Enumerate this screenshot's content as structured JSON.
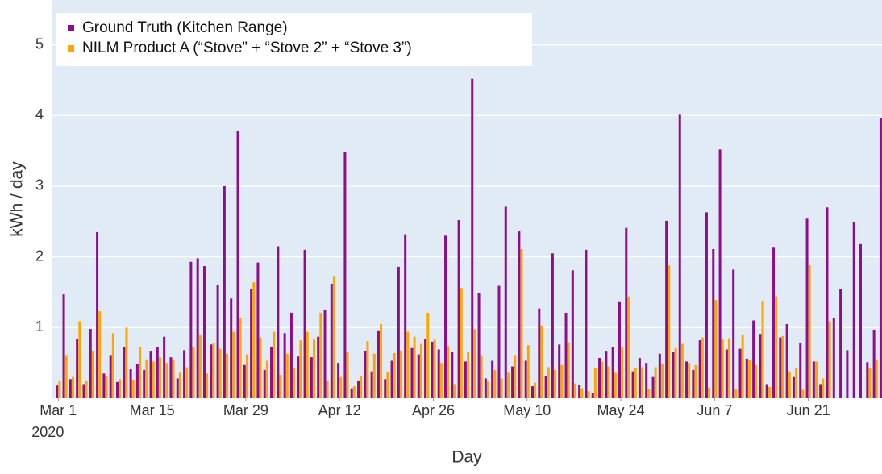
{
  "chart_data": {
    "type": "bar",
    "x": [
      "2020-03-01",
      "2020-03-02",
      "2020-03-03",
      "2020-03-04",
      "2020-03-05",
      "2020-03-06",
      "2020-03-07",
      "2020-03-08",
      "2020-03-09",
      "2020-03-10",
      "2020-03-11",
      "2020-03-12",
      "2020-03-13",
      "2020-03-14",
      "2020-03-15",
      "2020-03-16",
      "2020-03-17",
      "2020-03-18",
      "2020-03-19",
      "2020-03-20",
      "2020-03-21",
      "2020-03-22",
      "2020-03-23",
      "2020-03-24",
      "2020-03-25",
      "2020-03-26",
      "2020-03-27",
      "2020-03-28",
      "2020-03-29",
      "2020-03-30",
      "2020-03-31",
      "2020-04-01",
      "2020-04-02",
      "2020-04-03",
      "2020-04-04",
      "2020-04-05",
      "2020-04-06",
      "2020-04-07",
      "2020-04-08",
      "2020-04-09",
      "2020-04-10",
      "2020-04-11",
      "2020-04-12",
      "2020-04-13",
      "2020-04-14",
      "2020-04-15",
      "2020-04-16",
      "2020-04-17",
      "2020-04-18",
      "2020-04-19",
      "2020-04-20",
      "2020-04-21",
      "2020-04-22",
      "2020-04-23",
      "2020-04-24",
      "2020-04-25",
      "2020-04-26",
      "2020-04-27",
      "2020-04-28",
      "2020-04-29",
      "2020-04-30",
      "2020-05-01",
      "2020-05-02",
      "2020-05-03",
      "2020-05-04",
      "2020-05-05",
      "2020-05-06",
      "2020-05-07",
      "2020-05-08",
      "2020-05-09",
      "2020-05-10",
      "2020-05-11",
      "2020-05-12",
      "2020-05-13",
      "2020-05-14",
      "2020-05-15",
      "2020-05-16",
      "2020-05-17",
      "2020-05-18",
      "2020-05-19",
      "2020-05-20",
      "2020-05-21",
      "2020-05-22",
      "2020-05-23",
      "2020-05-24",
      "2020-05-25",
      "2020-05-26",
      "2020-05-27",
      "2020-05-28",
      "2020-05-29",
      "2020-05-30",
      "2020-05-31",
      "2020-06-01",
      "2020-06-02",
      "2020-06-03",
      "2020-06-04",
      "2020-06-05",
      "2020-06-06",
      "2020-06-07",
      "2020-06-08",
      "2020-06-09",
      "2020-06-10",
      "2020-06-11",
      "2020-06-12",
      "2020-06-13",
      "2020-06-14",
      "2020-06-15",
      "2020-06-16",
      "2020-06-17",
      "2020-06-18",
      "2020-06-19",
      "2020-06-20",
      "2020-06-21",
      "2020-06-22",
      "2020-06-23",
      "2020-06-24",
      "2020-06-25",
      "2020-06-26",
      "2020-06-27",
      "2020-06-28",
      "2020-06-29",
      "2020-06-30",
      "2020-07-01",
      "2020-07-02"
    ],
    "series": [
      {
        "name": "Ground Truth (Kitchen Range)",
        "color": "#8e0c8e",
        "values": [
          0.18,
          1.47,
          0.27,
          0.84,
          0.2,
          0.98,
          2.35,
          0.35,
          0.6,
          0.23,
          0.72,
          0.41,
          0.48,
          0.4,
          0.66,
          0.72,
          0.87,
          0.58,
          0.28,
          0.68,
          1.93,
          1.98,
          1.87,
          0.76,
          1.6,
          3,
          1.41,
          3.78,
          0.47,
          1.54,
          1.92,
          0.4,
          0.72,
          2.15,
          0.92,
          1.21,
          0.59,
          2.1,
          0.58,
          0.87,
          1.25,
          1.62,
          0.5,
          3.48,
          0.14,
          0.24,
          0.67,
          0.38,
          0.96,
          0.27,
          0.53,
          1.86,
          2.32,
          0.71,
          0.62,
          0.84,
          0.8,
          0.69,
          2.3,
          0.65,
          2.52,
          0.52,
          4.52,
          1.49,
          0.28,
          0.53,
          1.59,
          2.71,
          0.45,
          2.36,
          0.53,
          0.17,
          1.27,
          0.31,
          2.05,
          0.76,
          1.21,
          1.81,
          0.19,
          2.1,
          0.08,
          0.57,
          0.66,
          0.73,
          1.36,
          2.41,
          0.38,
          0.57,
          0.5,
          0.3,
          0.63,
          2.51,
          0.65,
          4.01,
          0.52,
          0.4,
          0.82,
          2.63,
          2.11,
          3.52,
          0.69,
          1.82,
          0.7,
          0.56,
          1.1,
          0.91,
          0.2,
          2.13,
          0.86,
          1.05,
          0.3,
          0.78,
          2.54,
          0.52,
          0.2,
          2.7,
          1.14,
          1.55,
          0.68,
          2.49,
          2.18,
          0.51,
          0.97,
          3.96
        ]
      },
      {
        "name": "NILM Product A (“Stove” + “Stove 2” + “Stove 3”)",
        "color": "#ffa500",
        "values": [
          0.24,
          0.6,
          0.3,
          1.09,
          0.24,
          0.67,
          1.23,
          0.32,
          0.92,
          0.27,
          1,
          0.25,
          0.73,
          0.55,
          0.52,
          0.58,
          0.5,
          0.55,
          0.36,
          0.44,
          0.72,
          0.9,
          0.35,
          0.78,
          0.7,
          0.63,
          0.94,
          1.13,
          0.62,
          1.64,
          0.86,
          0.53,
          0.94,
          0.33,
          0.63,
          0.43,
          0.82,
          0.94,
          0.83,
          1.21,
          0.24,
          1.72,
          0.3,
          0.65,
          0.17,
          0.32,
          0.81,
          0.63,
          1.05,
          0.37,
          0.64,
          0.67,
          0.94,
          0.87,
          0.77,
          1.21,
          0.83,
          0.5,
          0.74,
          0.2,
          1.56,
          0.65,
          0.98,
          0.6,
          0.24,
          0.4,
          0.28,
          0.36,
          0.6,
          2.11,
          0.75,
          0.22,
          1.03,
          0.44,
          0.4,
          0.47,
          0.79,
          0.21,
          0.14,
          0.1,
          0.43,
          0.52,
          0.45,
          0.36,
          0.72,
          1.44,
          0.43,
          0.44,
          0.13,
          0.44,
          0.48,
          1.88,
          0.71,
          0.77,
          0.5,
          0.47,
          0.86,
          0.15,
          1.39,
          0.83,
          0.85,
          0.13,
          0.89,
          0.54,
          0.47,
          1.37,
          0.16,
          1.44,
          0.88,
          0.38,
          0.43,
          0.12,
          1.88,
          0.52,
          0.28,
          1.09,
          0,
          0,
          0,
          0,
          0,
          0.42,
          0.55,
          null
        ]
      }
    ],
    "xlabel": "Day",
    "ylabel": "kWh / day",
    "xlim": [
      "2020-02-29",
      "2020-07-02"
    ],
    "xticks": [
      {
        "value": "2020-03-01",
        "label": "Mar 1\n2020"
      },
      {
        "value": "2020-03-15",
        "label": "Mar 15"
      },
      {
        "value": "2020-03-29",
        "label": "Mar 29"
      },
      {
        "value": "2020-04-12",
        "label": "Apr 12"
      },
      {
        "value": "2020-04-26",
        "label": "Apr 26"
      },
      {
        "value": "2020-05-10",
        "label": "May 10"
      },
      {
        "value": "2020-05-24",
        "label": "May 24"
      },
      {
        "value": "2020-06-07",
        "label": "Jun 7"
      },
      {
        "value": "2020-06-21",
        "label": "Jun 21"
      }
    ],
    "ylim": [
      0,
      5.6
    ],
    "yticks": [
      1,
      2,
      3,
      4,
      5
    ],
    "grid": true,
    "legend": "upper left"
  }
}
